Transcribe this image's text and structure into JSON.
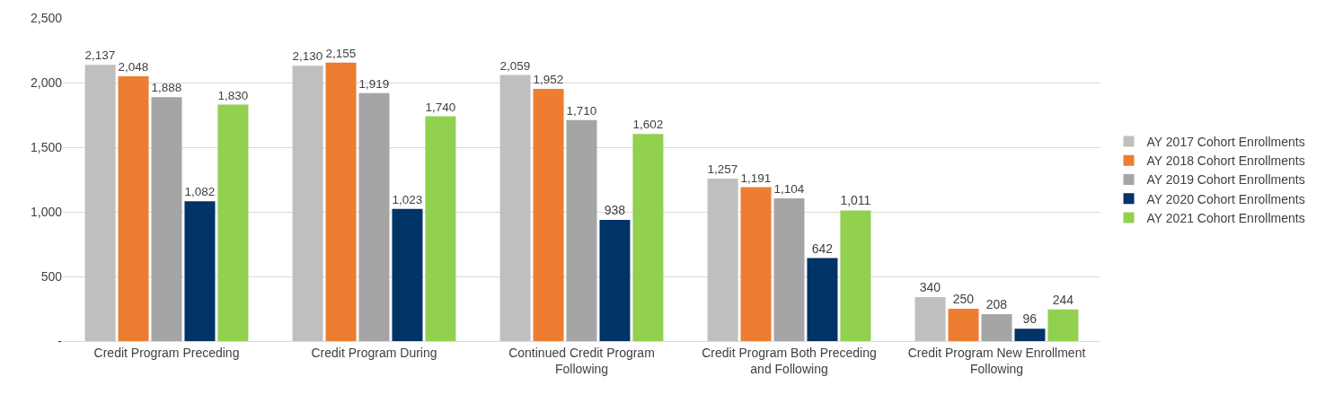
{
  "chart_data": {
    "type": "bar",
    "categories": [
      "Credit Program Preceding",
      "Credit Program During",
      "Continued Credit Program Following",
      "Credit Program Both Preceding and Following",
      "Credit Program New Enrollment Following"
    ],
    "series": [
      {
        "name": "AY 2017 Cohort Enrollments",
        "color": "#bfbfbf",
        "values": [
          2137,
          2130,
          2059,
          1257,
          340
        ],
        "value_labels": [
          "2,137",
          "2,130",
          "2,059",
          "1,257",
          "340"
        ]
      },
      {
        "name": "AY 2018 Cohort Enrollments",
        "color": "#ed7d31",
        "values": [
          2048,
          2155,
          1952,
          1191,
          250
        ],
        "value_labels": [
          "2,048",
          "2,155",
          "1,952",
          "1,191",
          "250"
        ]
      },
      {
        "name": "AY 2019 Cohort Enrollments",
        "color": "#a5a5a5",
        "values": [
          1888,
          1919,
          1710,
          1104,
          208
        ],
        "value_labels": [
          "1,888",
          "1,919",
          "1,710",
          "1,104",
          "208"
        ]
      },
      {
        "name": "AY 2020 Cohort Enrollments",
        "color": "#003366",
        "values": [
          1082,
          1023,
          938,
          642,
          96
        ],
        "value_labels": [
          "1,082",
          "1,023",
          "938",
          "642",
          "96"
        ]
      },
      {
        "name": "AY 2021 Cohort Enrollments",
        "color": "#92d050",
        "values": [
          1830,
          1740,
          1602,
          1011,
          244
        ],
        "value_labels": [
          "1,830",
          "1,740",
          "1,602",
          "1,011",
          "244"
        ]
      }
    ],
    "ylim": [
      0,
      2500
    ],
    "yticks": [
      {
        "value": 0,
        "label": "-"
      },
      {
        "value": 500,
        "label": "500"
      },
      {
        "value": 1000,
        "label": "1,000"
      },
      {
        "value": 1500,
        "label": "1,500"
      },
      {
        "value": 2000,
        "label": "2,000"
      },
      {
        "value": 2500,
        "label": "2,500"
      }
    ],
    "grid": "y",
    "legend": "right"
  }
}
